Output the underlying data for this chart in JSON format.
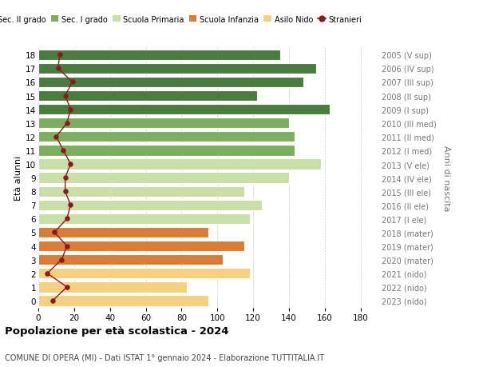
{
  "ages": [
    18,
    17,
    16,
    15,
    14,
    13,
    12,
    11,
    10,
    9,
    8,
    7,
    6,
    5,
    4,
    3,
    2,
    1,
    0
  ],
  "right_labels": [
    "2005 (V sup)",
    "2006 (IV sup)",
    "2007 (III sup)",
    "2008 (II sup)",
    "2009 (I sup)",
    "2010 (III med)",
    "2011 (II med)",
    "2012 (I med)",
    "2013 (V ele)",
    "2014 (IV ele)",
    "2015 (III ele)",
    "2016 (II ele)",
    "2017 (I ele)",
    "2018 (mater)",
    "2019 (mater)",
    "2020 (mater)",
    "2021 (nido)",
    "2022 (nido)",
    "2023 (nido)"
  ],
  "bar_values": [
    135,
    155,
    148,
    122,
    163,
    140,
    143,
    143,
    158,
    140,
    115,
    125,
    118,
    95,
    115,
    103,
    118,
    83,
    95
  ],
  "bar_colors": [
    "#4a7c3f",
    "#4a7c3f",
    "#4a7c3f",
    "#4a7c3f",
    "#4a7c3f",
    "#7baf5e",
    "#7baf5e",
    "#7baf5e",
    "#c8dfa8",
    "#c8dfa8",
    "#c8dfa8",
    "#c8dfa8",
    "#c8dfa8",
    "#d97c35",
    "#d97c35",
    "#d97c35",
    "#f5d080",
    "#f5d080",
    "#f5d080"
  ],
  "stranieri_values": [
    12,
    11,
    19,
    15,
    18,
    16,
    10,
    14,
    18,
    15,
    15,
    18,
    16,
    9,
    16,
    13,
    5,
    16,
    8
  ],
  "stranieri_color": "#8b1a1a",
  "xlim": [
    0,
    190
  ],
  "xticks": [
    0,
    20,
    40,
    60,
    80,
    100,
    120,
    140,
    160,
    180
  ],
  "legend_items": [
    {
      "label": "Sec. II grado",
      "color": "#4a7c3f"
    },
    {
      "label": "Sec. I grado",
      "color": "#7baf5e"
    },
    {
      "label": "Scuola Primaria",
      "color": "#c8dfa8"
    },
    {
      "label": "Scuola Infanzia",
      "color": "#d97c35"
    },
    {
      "label": "Asilo Nido",
      "color": "#f5d080"
    },
    {
      "label": "Stranieri",
      "color": "#8b1a1a"
    }
  ],
  "ylabel": "Età alunni",
  "right_ylabel": "Anni di nascita",
  "title": "Popolazione per età scolastica - 2024",
  "subtitle": "COMUNE DI OPERA (MI) - Dati ISTAT 1° gennaio 2024 - Elaborazione TUTTITALIA.IT",
  "bg_color": "#ffffff",
  "grid_color": "#cccccc",
  "bar_height": 0.78
}
